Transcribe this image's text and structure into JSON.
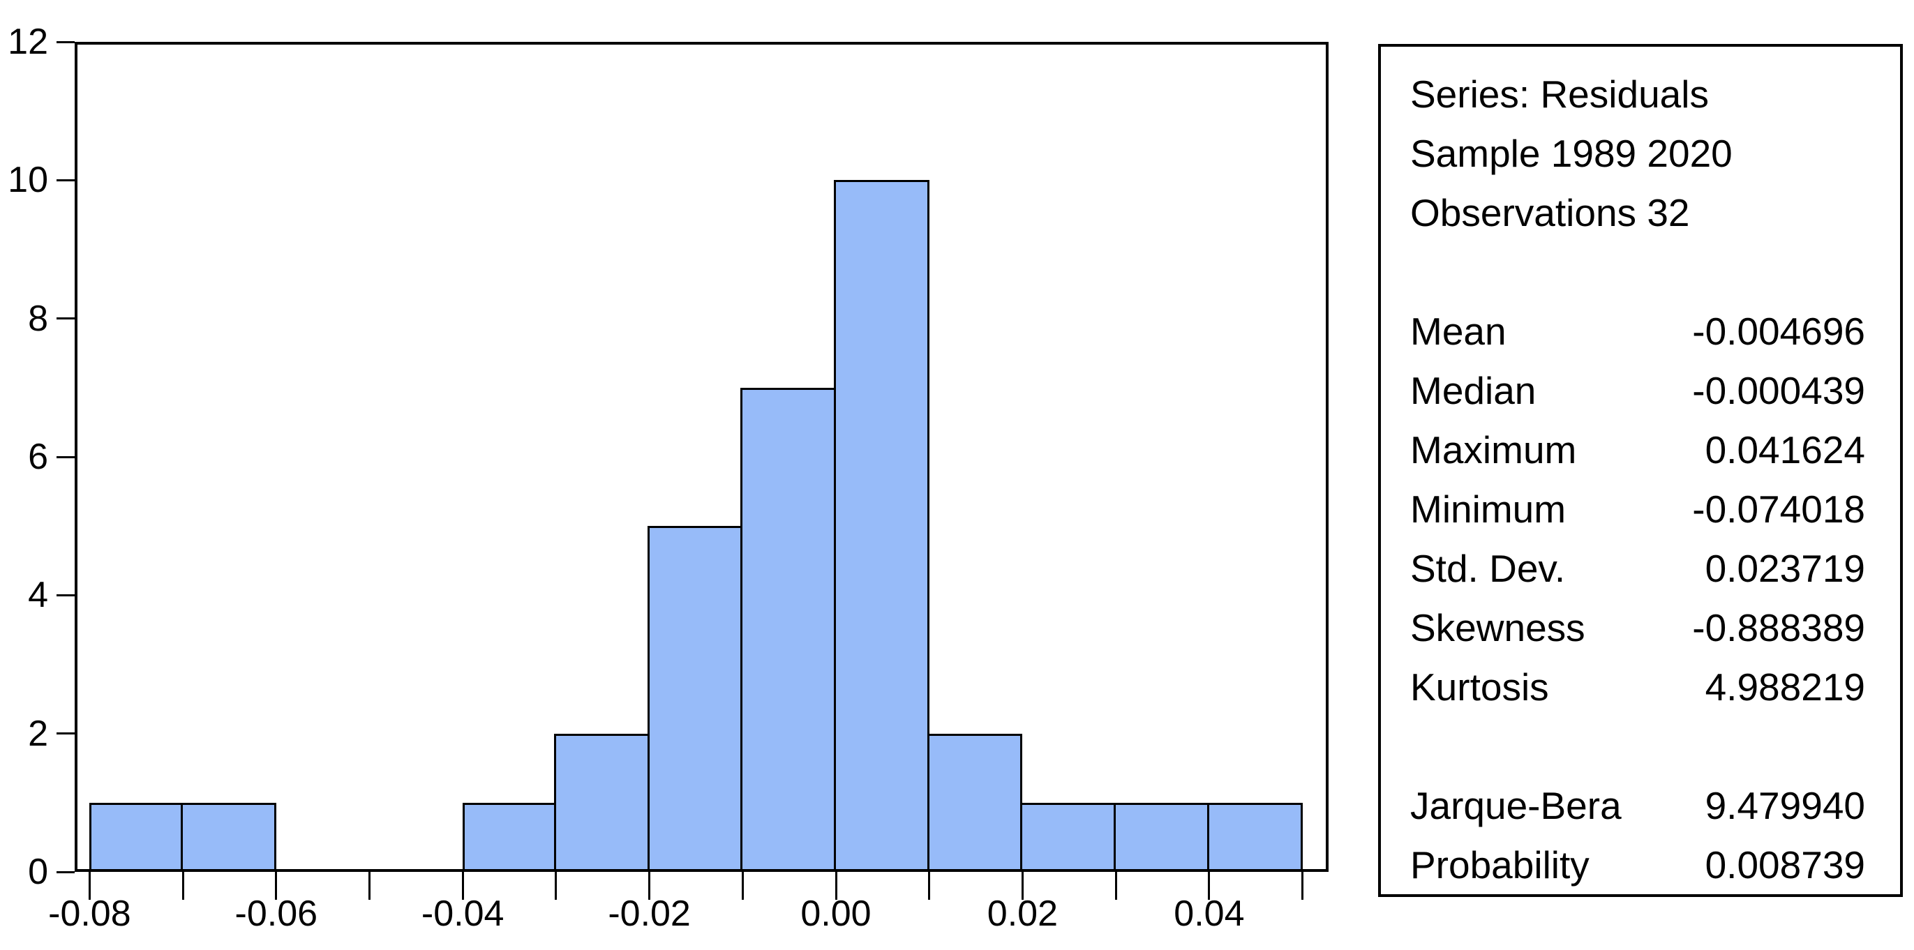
{
  "chart_data": {
    "type": "bar",
    "subtype": "histogram",
    "title": "",
    "xlabel": "",
    "ylabel": "",
    "series_name": "Residuals",
    "bin_width": 0.01,
    "bins": [
      {
        "x0": -0.08,
        "x1": -0.07,
        "count": 1
      },
      {
        "x0": -0.07,
        "x1": -0.06,
        "count": 1
      },
      {
        "x0": -0.06,
        "x1": -0.05,
        "count": 0
      },
      {
        "x0": -0.05,
        "x1": -0.04,
        "count": 0
      },
      {
        "x0": -0.04,
        "x1": -0.03,
        "count": 1
      },
      {
        "x0": -0.03,
        "x1": -0.02,
        "count": 2
      },
      {
        "x0": -0.02,
        "x1": -0.01,
        "count": 5
      },
      {
        "x0": -0.01,
        "x1": 0.0,
        "count": 7
      },
      {
        "x0": 0.0,
        "x1": 0.01,
        "count": 10
      },
      {
        "x0": 0.01,
        "x1": 0.02,
        "count": 2
      },
      {
        "x0": 0.02,
        "x1": 0.03,
        "count": 1
      },
      {
        "x0": 0.03,
        "x1": 0.04,
        "count": 1
      },
      {
        "x0": 0.04,
        "x1": 0.05,
        "count": 1
      }
    ],
    "xlim": [
      -0.0816,
      0.0528
    ],
    "ylim": [
      0,
      12
    ],
    "y_ticks": [
      0,
      2,
      4,
      6,
      8,
      10,
      12
    ],
    "x_tick_positions": [
      -0.08,
      -0.07,
      -0.06,
      -0.05,
      -0.04,
      -0.03,
      -0.02,
      -0.01,
      0,
      0.01,
      0.02,
      0.03,
      0.04,
      0.05
    ],
    "x_tick_labels": [
      {
        "pos": -0.08,
        "label": "-0.08"
      },
      {
        "pos": -0.06,
        "label": "-0.06"
      },
      {
        "pos": -0.04,
        "label": "-0.04"
      },
      {
        "pos": -0.02,
        "label": "-0.02"
      },
      {
        "pos": 0,
        "label": "0.00"
      },
      {
        "pos": 0.02,
        "label": "0.02"
      },
      {
        "pos": 0.04,
        "label": "0.04"
      }
    ],
    "grid": false,
    "legend": "none",
    "bar_fill": "#97BBF9",
    "bar_border": "#000000",
    "axis_color": "#000000"
  },
  "stats_panel": {
    "header_lines": [
      "Series: Residuals",
      "Sample 1989 2020",
      "Observations 32"
    ],
    "groups": [
      [
        {
          "label": "Mean",
          "value": "-0.004696"
        },
        {
          "label": "Median",
          "value": "-0.000439"
        },
        {
          "label": "Maximum",
          "value": "0.041624"
        },
        {
          "label": "Minimum",
          "value": "-0.074018"
        },
        {
          "label": "Std. Dev.",
          "value": "0.023719"
        },
        {
          "label": "Skewness",
          "value": "-0.888389"
        },
        {
          "label": "Kurtosis",
          "value": "4.988219"
        }
      ],
      [
        {
          "label": "Jarque-Bera",
          "value": "9.479940"
        },
        {
          "label": "Probability",
          "value": "0.008739"
        }
      ]
    ]
  }
}
